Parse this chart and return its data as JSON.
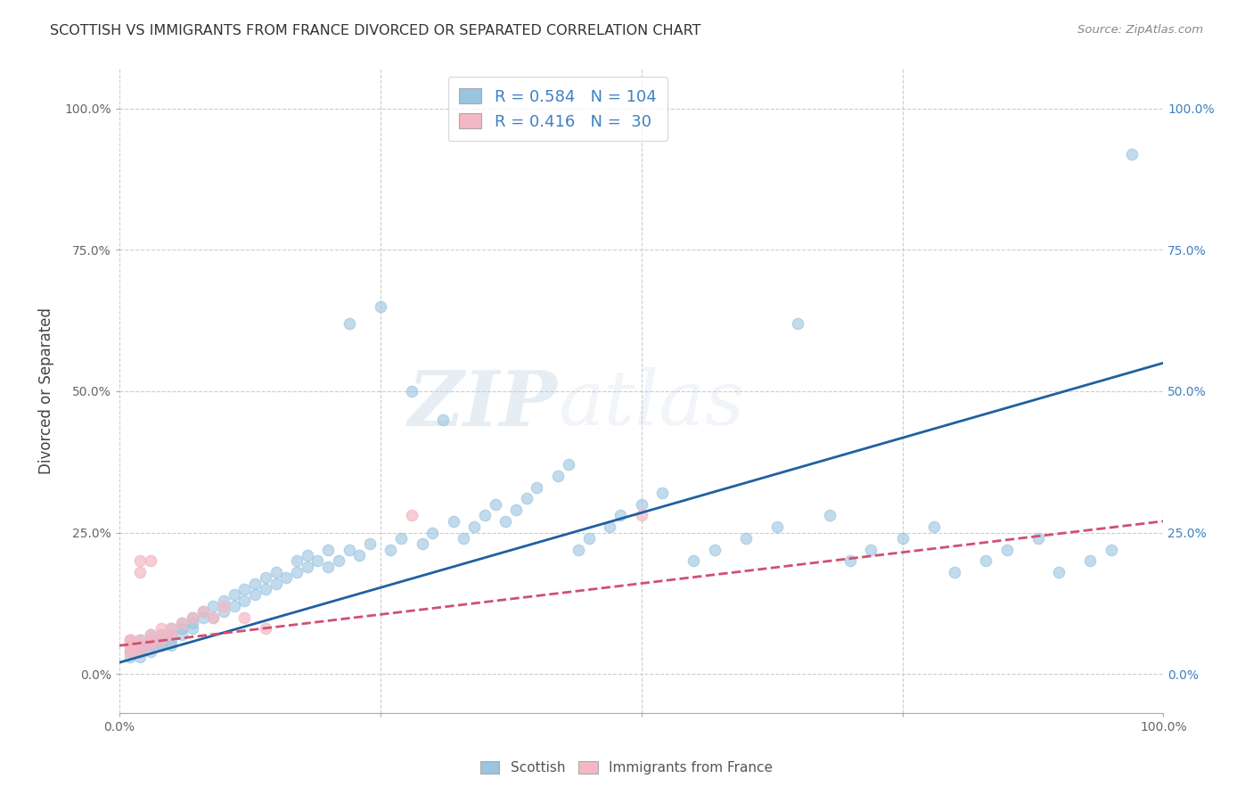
{
  "title": "SCOTTISH VS IMMIGRANTS FROM FRANCE DIVORCED OR SEPARATED CORRELATION CHART",
  "source": "Source: ZipAtlas.com",
  "ylabel": "Divorced or Separated",
  "xlim": [
    0.0,
    1.0
  ],
  "ylim": [
    -0.07,
    1.07
  ],
  "ytick_labels": [
    "0.0%",
    "25.0%",
    "50.0%",
    "75.0%",
    "100.0%"
  ],
  "ytick_positions": [
    0.0,
    0.25,
    0.5,
    0.75,
    1.0
  ],
  "background_color": "#ffffff",
  "grid_color": "#cccccc",
  "watermark_zip": "ZIP",
  "watermark_atlas": "atlas",
  "legend_entry1": "Scottish",
  "legend_entry2": "Immigrants from France",
  "R1": "0.584",
  "N1": "104",
  "R2": "0.416",
  "N2": "30",
  "blue_scatter_color": "#9ac4e0",
  "pink_scatter_color": "#f4b8c4",
  "blue_line_color": "#2060a0",
  "pink_line_color": "#d05070",
  "blue_right_axis_color": "#4080c0",
  "scottish_x": [
    0.01,
    0.01,
    0.01,
    0.01,
    0.01,
    0.02,
    0.02,
    0.02,
    0.02,
    0.02,
    0.02,
    0.02,
    0.03,
    0.03,
    0.03,
    0.03,
    0.03,
    0.03,
    0.04,
    0.04,
    0.04,
    0.04,
    0.04,
    0.05,
    0.05,
    0.05,
    0.05,
    0.06,
    0.06,
    0.06,
    0.07,
    0.07,
    0.07,
    0.08,
    0.08,
    0.09,
    0.09,
    0.1,
    0.1,
    0.11,
    0.11,
    0.12,
    0.12,
    0.13,
    0.13,
    0.14,
    0.14,
    0.15,
    0.15,
    0.16,
    0.17,
    0.17,
    0.18,
    0.18,
    0.19,
    0.2,
    0.2,
    0.21,
    0.22,
    0.22,
    0.23,
    0.24,
    0.25,
    0.26,
    0.27,
    0.28,
    0.29,
    0.3,
    0.31,
    0.32,
    0.33,
    0.34,
    0.35,
    0.36,
    0.37,
    0.38,
    0.39,
    0.4,
    0.42,
    0.43,
    0.44,
    0.45,
    0.47,
    0.48,
    0.5,
    0.52,
    0.55,
    0.57,
    0.6,
    0.63,
    0.65,
    0.68,
    0.7,
    0.72,
    0.75,
    0.78,
    0.8,
    0.83,
    0.85,
    0.88,
    0.9,
    0.93,
    0.95,
    0.97
  ],
  "scottish_y": [
    0.05,
    0.05,
    0.04,
    0.06,
    0.03,
    0.05,
    0.04,
    0.05,
    0.06,
    0.04,
    0.05,
    0.03,
    0.05,
    0.06,
    0.04,
    0.05,
    0.06,
    0.07,
    0.05,
    0.06,
    0.07,
    0.05,
    0.06,
    0.06,
    0.07,
    0.08,
    0.05,
    0.07,
    0.08,
    0.09,
    0.08,
    0.09,
    0.1,
    0.1,
    0.11,
    0.1,
    0.12,
    0.11,
    0.13,
    0.12,
    0.14,
    0.13,
    0.15,
    0.14,
    0.16,
    0.15,
    0.17,
    0.16,
    0.18,
    0.17,
    0.18,
    0.2,
    0.19,
    0.21,
    0.2,
    0.22,
    0.19,
    0.2,
    0.22,
    0.62,
    0.21,
    0.23,
    0.65,
    0.22,
    0.24,
    0.5,
    0.23,
    0.25,
    0.45,
    0.27,
    0.24,
    0.26,
    0.28,
    0.3,
    0.27,
    0.29,
    0.31,
    0.33,
    0.35,
    0.37,
    0.22,
    0.24,
    0.26,
    0.28,
    0.3,
    0.32,
    0.2,
    0.22,
    0.24,
    0.26,
    0.62,
    0.28,
    0.2,
    0.22,
    0.24,
    0.26,
    0.18,
    0.2,
    0.22,
    0.24,
    0.18,
    0.2,
    0.22,
    0.92
  ],
  "france_x": [
    0.01,
    0.01,
    0.01,
    0.01,
    0.01,
    0.01,
    0.01,
    0.02,
    0.02,
    0.02,
    0.02,
    0.02,
    0.03,
    0.03,
    0.03,
    0.03,
    0.04,
    0.04,
    0.04,
    0.05,
    0.05,
    0.06,
    0.07,
    0.08,
    0.09,
    0.1,
    0.12,
    0.14,
    0.28,
    0.5
  ],
  "france_y": [
    0.05,
    0.04,
    0.06,
    0.05,
    0.04,
    0.06,
    0.05,
    0.04,
    0.2,
    0.05,
    0.18,
    0.06,
    0.07,
    0.05,
    0.2,
    0.06,
    0.07,
    0.08,
    0.06,
    0.07,
    0.08,
    0.09,
    0.1,
    0.11,
    0.1,
    0.12,
    0.1,
    0.08,
    0.28,
    0.28
  ],
  "blue_line_x0": 0.0,
  "blue_line_y0": 0.02,
  "blue_line_x1": 1.0,
  "blue_line_y1": 0.55,
  "pink_line_x0": 0.0,
  "pink_line_y0": 0.05,
  "pink_line_x1": 1.0,
  "pink_line_y1": 0.27
}
